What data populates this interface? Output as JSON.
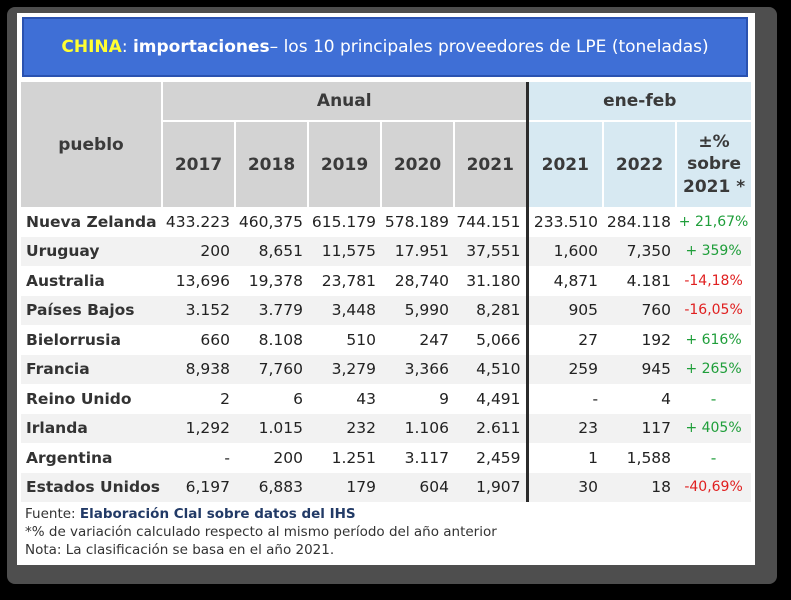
{
  "title": {
    "country": "CHINA",
    "colon": ":",
    "keyword": "importaciones",
    "rest": " – los 10 principales proveedores de LPE (toneladas)"
  },
  "header": {
    "col_name": "pueblo",
    "group_annual": "Anual",
    "group_period": "ene-feb",
    "years": [
      "2017",
      "2018",
      "2019",
      "2020",
      "2021"
    ],
    "period_years": [
      "2021",
      "2022"
    ],
    "pct_line1": "±%",
    "pct_line2": "sobre",
    "pct_line3": "2021 *"
  },
  "rows": [
    {
      "name": "Nueva Zelanda",
      "v": [
        "433.223",
        "460,375",
        "615.179",
        "578.189",
        "744.151"
      ],
      "p": [
        "233.510",
        "284.118"
      ],
      "pct": "+ 21,67%",
      "trend": "pos"
    },
    {
      "name": "Uruguay",
      "v": [
        "200",
        "8,651",
        "11,575",
        "17.951",
        "37,551"
      ],
      "p": [
        "1,600",
        "7,350"
      ],
      "pct": "+ 359%",
      "trend": "pos"
    },
    {
      "name": "Australia",
      "v": [
        "13,696",
        "19,378",
        "23,781",
        "28,740",
        "31.180"
      ],
      "p": [
        "4,871",
        "4.181"
      ],
      "pct": "-14,18%",
      "trend": "neg"
    },
    {
      "name": "Países Bajos",
      "v": [
        "3.152",
        "3.779",
        "3,448",
        "5,990",
        "8,281"
      ],
      "p": [
        "905",
        "760"
      ],
      "pct": "-16,05%",
      "trend": "neg"
    },
    {
      "name": "Bielorrusia",
      "v": [
        "660",
        "8.108",
        "510",
        "247",
        "5,066"
      ],
      "p": [
        "27",
        "192"
      ],
      "pct": "+ 616%",
      "trend": "pos"
    },
    {
      "name": "Francia",
      "v": [
        "8,938",
        "7,760",
        "3,279",
        "3,366",
        "4,510"
      ],
      "p": [
        "259",
        "945"
      ],
      "pct": "+ 265%",
      "trend": "pos"
    },
    {
      "name": "Reino Unido",
      "v": [
        "2",
        "6",
        "43",
        "9",
        "4,491"
      ],
      "p": [
        "-",
        "4"
      ],
      "pct": "-",
      "trend": "dash"
    },
    {
      "name": "Irlanda",
      "v": [
        "1,292",
        "1.015",
        "232",
        "1.106",
        "2.611"
      ],
      "p": [
        "23",
        "117"
      ],
      "pct": "+ 405%",
      "trend": "pos"
    },
    {
      "name": "Argentina",
      "v": [
        "-",
        "200",
        "1.251",
        "3.117",
        "2,459"
      ],
      "p": [
        "1",
        "1,588"
      ],
      "pct": "-",
      "trend": "dash"
    },
    {
      "name": "Estados Unidos",
      "v": [
        "6,197",
        "6,883",
        "179",
        "604",
        "1,907"
      ],
      "p": [
        "30",
        "18"
      ],
      "pct": "-40,69%",
      "trend": "neg"
    }
  ],
  "notes": {
    "source_label": "Fuente: ",
    "source_text": "Elaboración Clal sobre datos del IHS",
    "note1": "*% de variación calculado respecto al mismo período del año anterior",
    "note2": "Nota: La clasificación se basa en el año 2021."
  },
  "colors": {
    "title_bg": "#3f6fd6",
    "country": "#ffff33",
    "positive": "#1f9e3a",
    "negative": "#e02020"
  }
}
